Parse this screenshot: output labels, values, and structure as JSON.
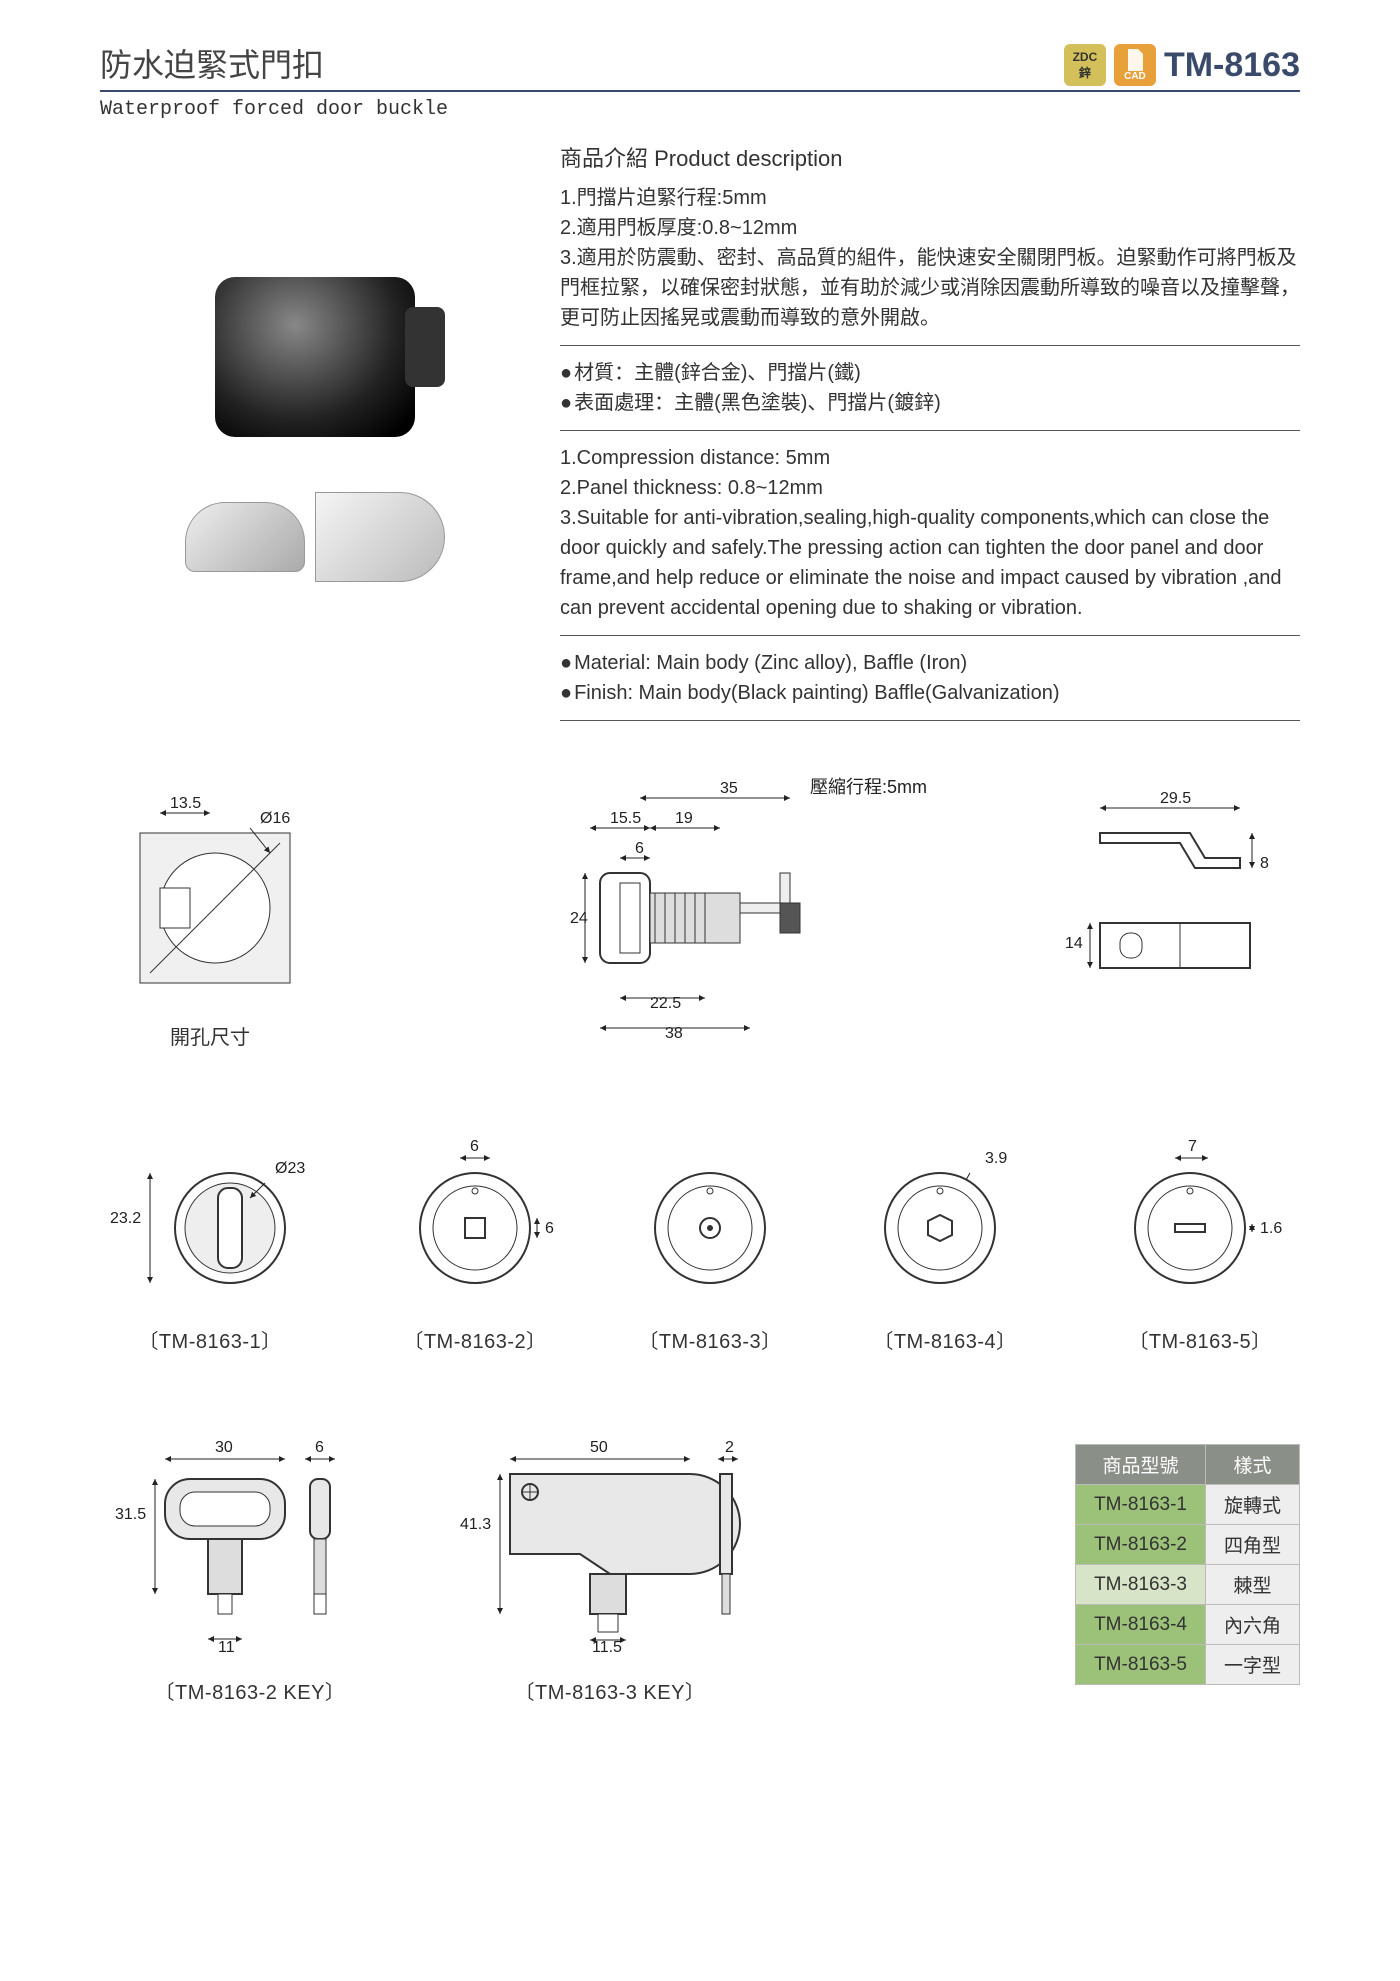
{
  "header": {
    "title_cn": "防水迫緊式門扣",
    "title_en": "Waterproof forced door buckle",
    "model": "TM-8163",
    "badges": {
      "zdc_top": "ZDC",
      "zdc_bottom": "鋅",
      "cad": "CAD"
    }
  },
  "desc": {
    "section_title": "商品介紹 Product description",
    "cn_lines": [
      "1.門擋片迫緊行程:5mm",
      "2.適用門板厚度:0.8~12mm",
      "3.適用於防震動、密封、高品質的組件，能快速安全關閉門板。迫緊動作可將門板及門框拉緊，以確保密封狀態，並有助於減少或消除因震動所導致的噪音以及撞擊聲，更可防止因搖晃或震動而導致的意外開啟。"
    ],
    "cn_bullets": [
      "材質：主體(鋅合金)、門擋片(鐵)",
      "表面處理：主體(黑色塗裝)、門擋片(鍍鋅)"
    ],
    "en_lines": [
      "1.Compression distance: 5mm",
      "2.Panel thickness: 0.8~12mm",
      "3.Suitable for anti-vibration,sealing,high-quality components,which can close the door quickly and safely.The pressing action can tighten the door panel and door frame,and help reduce or eliminate the noise and impact caused by vibration ,and can prevent accidental opening due to shaking or vibration."
    ],
    "en_bullets": [
      "Material: Main body (Zinc alloy), Baffle (Iron)",
      "Finish: Main body(Black painting) Baffle(Galvanization)"
    ]
  },
  "drawings": {
    "cutout": {
      "label": "開孔尺寸",
      "dim_w": "13.5",
      "dim_dia": "Ø16"
    },
    "side": {
      "dim_35": "35",
      "dim_155": "15.5",
      "dim_19": "19",
      "dim_6": "6",
      "dim_24": "24",
      "dim_225": "22.5",
      "dim_38": "38",
      "compress": "壓縮行程:5mm"
    },
    "baffle": {
      "dim_295": "29.5",
      "dim_8": "8",
      "dim_14": "14"
    }
  },
  "variants": {
    "v1": {
      "label": "〔TM-8163-1〕",
      "dim_h": "23.2",
      "dim_dia": "Ø23"
    },
    "v2": {
      "label": "〔TM-8163-2〕",
      "dim_6a": "6",
      "dim_6b": "6"
    },
    "v3": {
      "label": "〔TM-8163-3〕"
    },
    "v4": {
      "label": "〔TM-8163-4〕",
      "dim_39": "3.9"
    },
    "v5": {
      "label": "〔TM-8163-5〕",
      "dim_7": "7",
      "dim_16": "1.6"
    }
  },
  "keys": {
    "k2": {
      "label": "〔TM-8163-2 KEY〕",
      "dim_30": "30",
      "dim_6": "6",
      "dim_315": "31.5",
      "dim_11": "11"
    },
    "k3": {
      "label": "〔TM-8163-3 KEY〕",
      "dim_50": "50",
      "dim_2": "2",
      "dim_413": "41.3",
      "dim_115": "11.5"
    }
  },
  "table": {
    "head_model": "商品型號",
    "head_style": "樣式",
    "rows": [
      {
        "model": "TM-8163-1",
        "style": "旋轉式",
        "hl": true
      },
      {
        "model": "TM-8163-2",
        "style": "四角型",
        "hl": true
      },
      {
        "model": "TM-8163-3",
        "style": "棘型",
        "hl": false
      },
      {
        "model": "TM-8163-4",
        "style": "內六角",
        "hl": true
      },
      {
        "model": "TM-8163-5",
        "style": "一字型",
        "hl": true
      }
    ]
  },
  "colors": {
    "header_rule": "#3a4a6a",
    "badge_zdc_bg": "#d4c05a",
    "badge_cad_bg": "#e8a03a",
    "table_header_bg": "#8a8f88",
    "table_cell_green": "#9cc27a",
    "table_cell_ltgreen": "#d7e4c8"
  }
}
